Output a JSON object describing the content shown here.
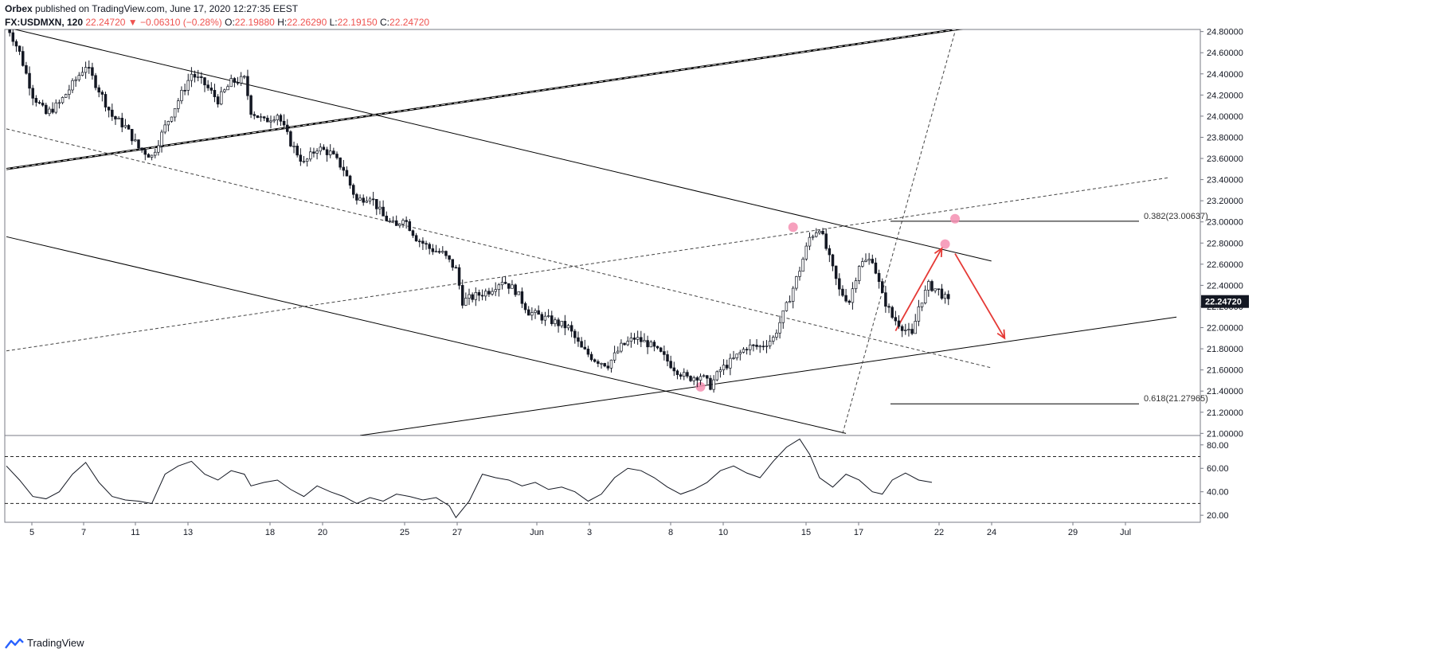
{
  "header": {
    "publisher": "Orbex",
    "published_text": "published on TradingView.com, June 17, 2020 12:27:35 EEST",
    "symbol": "FX:USDMXN, 120",
    "last": "22.24720",
    "change": "−0.06310 (−0.28%)",
    "o_label": "O:",
    "o": "22.19880",
    "h_label": "H:",
    "h": "22.26290",
    "l_label": "L:",
    "l": "22.19150",
    "c_label": "C:",
    "c": "22.24720"
  },
  "footer": {
    "brand": "TradingView"
  },
  "colors": {
    "candle": "#131722",
    "drawing": "#000000",
    "arrow": "#e53935",
    "marker": "#f48fb1",
    "grid_axis": "#787b86"
  },
  "chart_data": {
    "type": "candlestick",
    "symbol": "USDMXN",
    "interval": "120",
    "price_axis": {
      "ticks": [
        "24.80000",
        "24.60000",
        "24.40000",
        "24.20000",
        "24.00000",
        "23.80000",
        "23.60000",
        "23.40000",
        "23.20000",
        "23.00000",
        "22.80000",
        "22.60000",
        "22.40000",
        "22.20000",
        "22.00000",
        "21.80000",
        "21.60000",
        "21.40000",
        "21.20000",
        "21.00000"
      ],
      "range": [
        20.98,
        24.82
      ],
      "last_price_label": "22.24720"
    },
    "time_axis": {
      "ticks": [
        "5",
        "7",
        "11",
        "13",
        "18",
        "20",
        "25",
        "27",
        "Jun",
        "3",
        "8",
        "10",
        "15",
        "17",
        "22",
        "24",
        "29",
        "Jul"
      ]
    },
    "price_path": [
      [
        0,
        24.88
      ],
      [
        4,
        24.6
      ],
      [
        8,
        24.2
      ],
      [
        12,
        24.02
      ],
      [
        16,
        24.12
      ],
      [
        20,
        24.3
      ],
      [
        24,
        24.48
      ],
      [
        28,
        24.25
      ],
      [
        32,
        24.0
      ],
      [
        36,
        23.9
      ],
      [
        40,
        23.7
      ],
      [
        44,
        23.62
      ],
      [
        48,
        23.9
      ],
      [
        52,
        24.15
      ],
      [
        56,
        24.4
      ],
      [
        60,
        24.3
      ],
      [
        64,
        24.15
      ],
      [
        68,
        24.32
      ],
      [
        72,
        24.35
      ],
      [
        74,
        24.05
      ],
      [
        78,
        23.95
      ],
      [
        82,
        24.02
      ],
      [
        86,
        23.75
      ],
      [
        90,
        23.55
      ],
      [
        94,
        23.7
      ],
      [
        98,
        23.65
      ],
      [
        102,
        23.5
      ],
      [
        106,
        23.2
      ],
      [
        110,
        23.25
      ],
      [
        114,
        23.05
      ],
      [
        118,
        22.95
      ],
      [
        120,
        23.05
      ],
      [
        124,
        22.85
      ],
      [
        128,
        22.75
      ],
      [
        132,
        22.7
      ],
      [
        136,
        22.55
      ],
      [
        138,
        22.25
      ],
      [
        142,
        22.3
      ],
      [
        146,
        22.35
      ],
      [
        150,
        22.45
      ],
      [
        154,
        22.35
      ],
      [
        158,
        22.15
      ],
      [
        162,
        22.1
      ],
      [
        166,
        22.05
      ],
      [
        170,
        22.0
      ],
      [
        174,
        21.8
      ],
      [
        178,
        21.7
      ],
      [
        182,
        21.65
      ],
      [
        186,
        21.82
      ],
      [
        190,
        21.9
      ],
      [
        194,
        21.85
      ],
      [
        198,
        21.75
      ],
      [
        202,
        21.62
      ],
      [
        206,
        21.52
      ],
      [
        210,
        21.55
      ],
      [
        213,
        21.45
      ],
      [
        216,
        21.6
      ],
      [
        220,
        21.7
      ],
      [
        224,
        21.82
      ],
      [
        228,
        21.82
      ],
      [
        232,
        21.9
      ],
      [
        236,
        22.2
      ],
      [
        240,
        22.55
      ],
      [
        243,
        22.85
      ],
      [
        246,
        22.95
      ],
      [
        248,
        22.75
      ],
      [
        252,
        22.35
      ],
      [
        255,
        22.25
      ],
      [
        258,
        22.6
      ],
      [
        262,
        22.65
      ],
      [
        265,
        22.3
      ],
      [
        268,
        22.1
      ],
      [
        272,
        21.98
      ],
      [
        274,
        21.92
      ],
      [
        276,
        22.2
      ],
      [
        279,
        22.4
      ],
      [
        282,
        22.35
      ],
      [
        285,
        22.24
      ]
    ],
    "fibonacci": [
      {
        "label": "0.382(23.00637)",
        "price": 23.00637
      },
      {
        "label": "0.618(21.27965)",
        "price": 21.27965
      }
    ],
    "trendlines": [
      {
        "style": "solid",
        "from": [
          0,
          24.84
        ],
        "to": [
          298,
          22.63
        ]
      },
      {
        "style": "solid",
        "from": [
          0,
          22.86
        ],
        "to": [
          254,
          21.0
        ]
      },
      {
        "style": "dashed",
        "from": [
          0,
          23.88
        ],
        "to": [
          298,
          21.62
        ]
      },
      {
        "style": "double",
        "from": [
          0,
          23.5
        ],
        "to": [
          296,
          24.86
        ]
      },
      {
        "style": "dashed",
        "from": [
          0,
          21.78
        ],
        "to": [
          352,
          23.42
        ]
      },
      {
        "style": "solid",
        "from": [
          107,
          20.98
        ],
        "to": [
          354,
          22.1
        ]
      },
      {
        "style": "dashed",
        "from": [
          253,
          21.0
        ],
        "to": [
          287,
          24.8
        ]
      }
    ],
    "markers": [
      {
        "x": 238,
        "y": 22.95
      },
      {
        "x": 210,
        "y": 21.44
      },
      {
        "x": 287,
        "y": 23.03
      },
      {
        "x": 284,
        "y": 22.79
      }
    ],
    "forecast_arrows": [
      {
        "from": [
          269,
          21.97
        ],
        "to": [
          283,
          22.75
        ]
      },
      {
        "from": [
          287,
          22.7
        ],
        "to": [
          302,
          21.9
        ]
      }
    ],
    "oscillator": {
      "type": "line",
      "ticks": [
        "80.00",
        "60.00",
        "40.00",
        "20.00"
      ],
      "range": [
        14,
        88
      ],
      "levels": [
        70,
        30
      ],
      "values": [
        [
          0,
          62
        ],
        [
          4,
          50
        ],
        [
          8,
          36
        ],
        [
          12,
          34
        ],
        [
          16,
          40
        ],
        [
          20,
          55
        ],
        [
          24,
          65
        ],
        [
          28,
          48
        ],
        [
          32,
          36
        ],
        [
          36,
          33
        ],
        [
          40,
          32
        ],
        [
          44,
          30
        ],
        [
          48,
          55
        ],
        [
          52,
          62
        ],
        [
          56,
          66
        ],
        [
          60,
          55
        ],
        [
          64,
          50
        ],
        [
          68,
          58
        ],
        [
          72,
          55
        ],
        [
          74,
          45
        ],
        [
          78,
          48
        ],
        [
          82,
          50
        ],
        [
          86,
          42
        ],
        [
          90,
          36
        ],
        [
          94,
          45
        ],
        [
          98,
          40
        ],
        [
          102,
          36
        ],
        [
          106,
          30
        ],
        [
          110,
          35
        ],
        [
          114,
          32
        ],
        [
          118,
          38
        ],
        [
          122,
          36
        ],
        [
          126,
          33
        ],
        [
          130,
          35
        ],
        [
          134,
          28
        ],
        [
          136,
          18
        ],
        [
          140,
          32
        ],
        [
          144,
          55
        ],
        [
          148,
          52
        ],
        [
          152,
          50
        ],
        [
          156,
          45
        ],
        [
          160,
          48
        ],
        [
          164,
          42
        ],
        [
          168,
          44
        ],
        [
          172,
          40
        ],
        [
          176,
          32
        ],
        [
          180,
          38
        ],
        [
          184,
          52
        ],
        [
          188,
          60
        ],
        [
          192,
          58
        ],
        [
          196,
          52
        ],
        [
          200,
          44
        ],
        [
          204,
          38
        ],
        [
          208,
          42
        ],
        [
          212,
          48
        ],
        [
          216,
          58
        ],
        [
          220,
          62
        ],
        [
          224,
          56
        ],
        [
          228,
          52
        ],
        [
          232,
          66
        ],
        [
          236,
          78
        ],
        [
          240,
          85
        ],
        [
          243,
          72
        ],
        [
          246,
          52
        ],
        [
          250,
          44
        ],
        [
          254,
          55
        ],
        [
          258,
          50
        ],
        [
          262,
          40
        ],
        [
          265,
          38
        ],
        [
          268,
          50
        ],
        [
          272,
          56
        ],
        [
          276,
          50
        ],
        [
          280,
          48
        ]
      ]
    }
  }
}
